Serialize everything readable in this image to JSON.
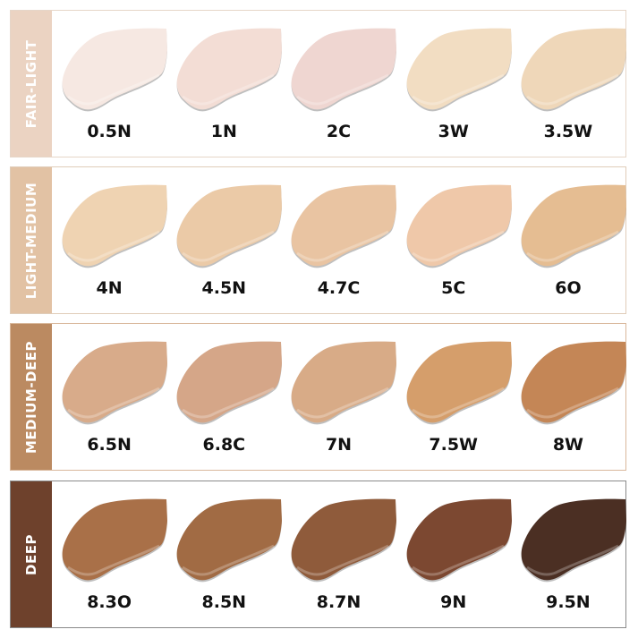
{
  "groups": [
    {
      "label": "FAIR-LIGHT",
      "band_color": "#ebd3c2",
      "border_color": "#e6d6c8",
      "shades": [
        {
          "name": "0.5N",
          "color": "#f6e8e2"
        },
        {
          "name": "1N",
          "color": "#f3ddd5"
        },
        {
          "name": "2C",
          "color": "#efd6d1"
        },
        {
          "name": "3W",
          "color": "#f2ddc2"
        },
        {
          "name": "3.5W",
          "color": "#efd7b9"
        }
      ]
    },
    {
      "label": "LIGHT-MEDIUM",
      "band_color": "#e2c2a4",
      "border_color": "#e0cdb9",
      "shades": [
        {
          "name": "4N",
          "color": "#efd3b2"
        },
        {
          "name": "4.5N",
          "color": "#ebcaa7"
        },
        {
          "name": "4.7C",
          "color": "#e9c4a2"
        },
        {
          "name": "5C",
          "color": "#efc8a9"
        },
        {
          "name": "6O",
          "color": "#e5bd92"
        }
      ]
    },
    {
      "label": "MEDIUM-DEEP",
      "band_color": "#bb8a61",
      "border_color": "#d9b89c",
      "shades": [
        {
          "name": "6.5N",
          "color": "#d8ab8a"
        },
        {
          "name": "6.8C",
          "color": "#d5a688"
        },
        {
          "name": "7N",
          "color": "#d8ab87"
        },
        {
          "name": "7.5W",
          "color": "#d59e6b"
        },
        {
          "name": "8W",
          "color": "#c48656"
        }
      ]
    },
    {
      "label": "DEEP",
      "band_color": "#6e412c",
      "border_color": "#8a8a8a",
      "shades": [
        {
          "name": "8.3O",
          "color": "#a97048"
        },
        {
          "name": "8.5N",
          "color": "#a16b44"
        },
        {
          "name": "8.7N",
          "color": "#8f5b3b"
        },
        {
          "name": "9N",
          "color": "#7c4831"
        },
        {
          "name": "9.5N",
          "color": "#4b2f23"
        }
      ]
    }
  ]
}
